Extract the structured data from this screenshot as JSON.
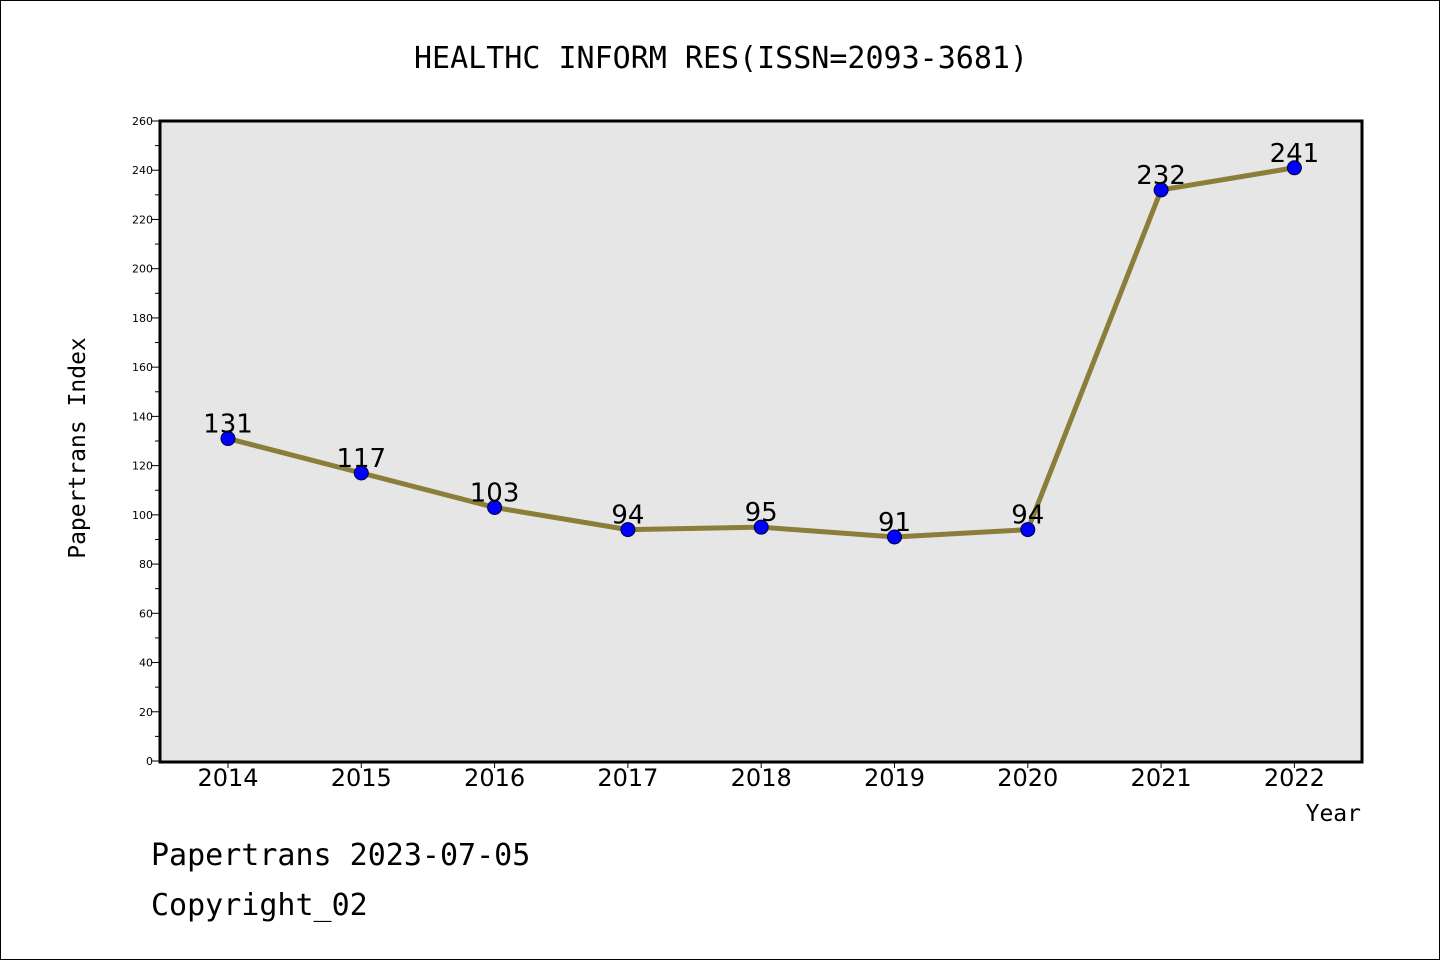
{
  "chart_data": {
    "type": "line",
    "title": "HEALTHC INFORM RES(ISSN=2093-3681)",
    "xlabel": "Year",
    "ylabel": "Papertrans Index",
    "categories": [
      "2014",
      "2015",
      "2016",
      "2017",
      "2018",
      "2019",
      "2020",
      "2021",
      "2022"
    ],
    "values": [
      131,
      117,
      103,
      94,
      95,
      91,
      94,
      232,
      241
    ],
    "data_labels": [
      "131",
      "117",
      "103",
      "94",
      "95",
      "91",
      "94",
      "232",
      "241"
    ],
    "yticks": [
      "0",
      "20",
      "40",
      "60",
      "80",
      "100",
      "120",
      "140",
      "160",
      "180",
      "200",
      "220",
      "240",
      "260"
    ],
    "ylim": [
      0,
      260
    ],
    "grid": false,
    "legend": "none",
    "colors": {
      "line": "#8B7D3A",
      "marker": "#0000FF",
      "plot_background": "#E6E6E6"
    }
  },
  "footer": {
    "line1": "Papertrans 2023-07-05",
    "line2": "Copyright_02"
  }
}
